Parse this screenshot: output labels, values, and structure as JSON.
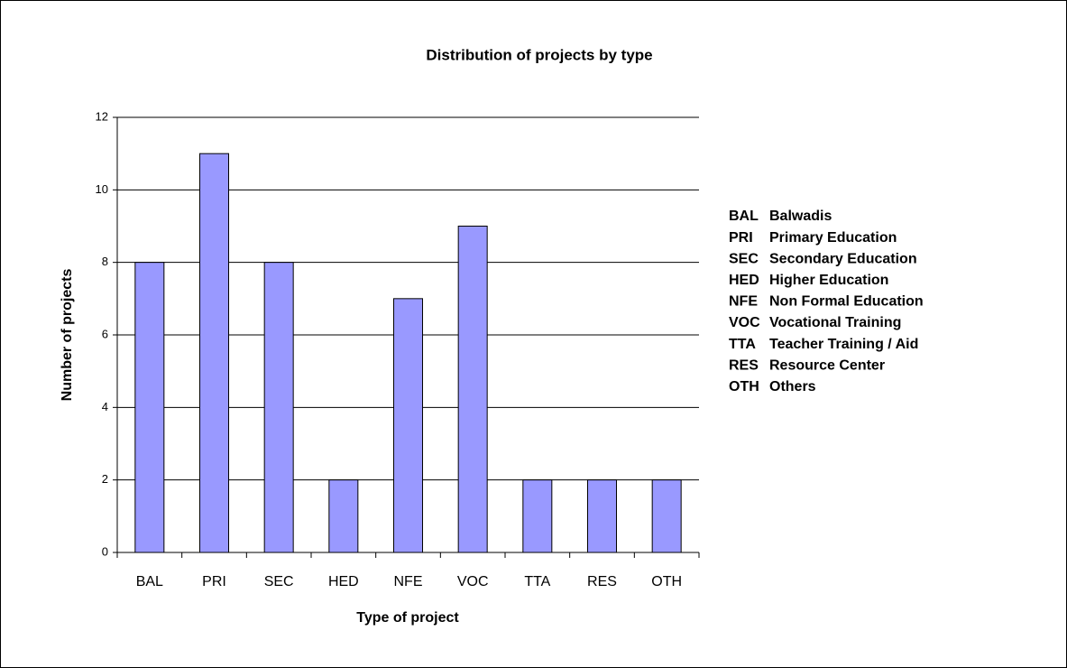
{
  "chart_data": {
    "type": "bar",
    "title": "Distribution of projects by type",
    "x_label": "Type of project",
    "y_label": "Number of projects",
    "categories": [
      "BAL",
      "PRI",
      "SEC",
      "HED",
      "NFE",
      "VOC",
      "TTA",
      "RES",
      "OTH"
    ],
    "values": [
      8,
      11,
      8,
      2,
      7,
      9,
      2,
      2,
      2
    ],
    "color": "#9999ff",
    "ylim": [
      0,
      12
    ],
    "yticks": [
      0,
      2,
      4,
      6,
      8,
      10,
      12
    ],
    "grid": true,
    "annotations": [
      {
        "code": "BAL",
        "text": "Balwadis"
      },
      {
        "code": "PRI",
        "text": "Primary Education"
      },
      {
        "code": "SEC",
        "text": "Secondary Education"
      },
      {
        "code": "HED",
        "text": "Higher Education"
      },
      {
        "code": "NFE",
        "text": "Non Formal Education"
      },
      {
        "code": "VOC",
        "text": "Vocational Training"
      },
      {
        "code": "TTA",
        "text": "Teacher Training / Aid"
      },
      {
        "code": "RES",
        "text": "Resource Center"
      },
      {
        "code": "OTH",
        "text": "Others"
      }
    ]
  }
}
